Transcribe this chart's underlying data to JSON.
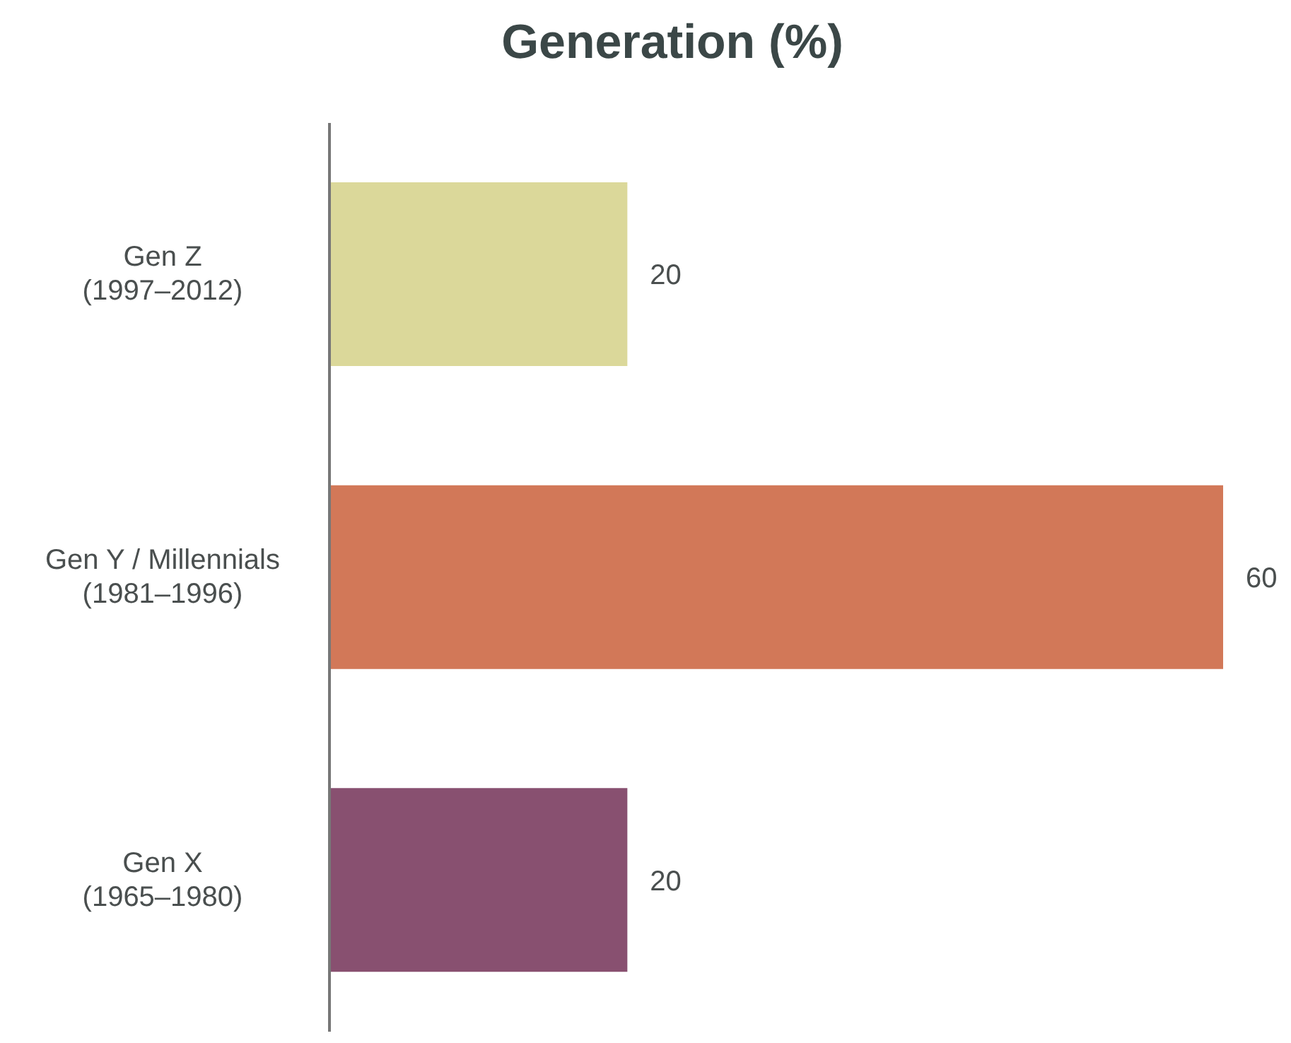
{
  "chart_data": {
    "type": "bar",
    "title": "Generation (%)",
    "orientation": "horizontal",
    "categories": [
      "Gen Z\n(1997–2012)",
      "Gen Y / Millennials\n(1981–1996)",
      "Gen X\n(1965–1980)"
    ],
    "values": [
      20,
      60,
      20
    ],
    "colors": [
      "#dbd89a",
      "#d27858",
      "#885070"
    ],
    "data_labels": true,
    "grid": false,
    "legend": false
  }
}
